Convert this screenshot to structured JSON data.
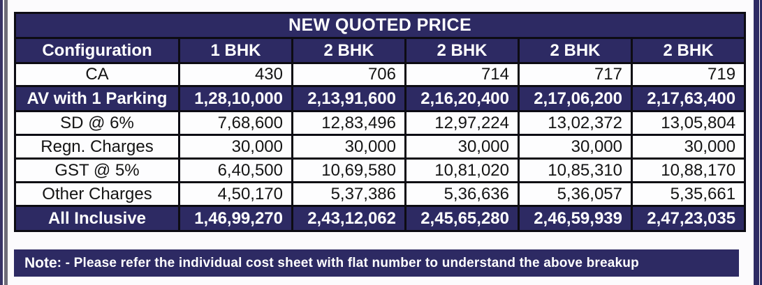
{
  "colors": {
    "navy": "#2d2a63",
    "border": "#0d0c13",
    "pageBg": "#fcfbfd",
    "cellBg": "#fdfdfe",
    "textDark": "#141414",
    "textLight": "#ffffff",
    "grayStripe": "#6e6c77",
    "leftNavy": "#393465"
  },
  "table": {
    "title": "NEW QUOTED PRICE",
    "columns": [
      "Configuration",
      "1 BHK",
      "2 BHK",
      "2 BHK",
      "2 BHK",
      "2 BHK"
    ],
    "rows": [
      {
        "label": "CA",
        "highlight": false,
        "values": [
          "430",
          "706",
          "714",
          "717",
          "719"
        ]
      },
      {
        "label": "AV with 1 Parking",
        "highlight": true,
        "values": [
          "1,28,10,000",
          "2,13,91,600",
          "2,16,20,400",
          "2,17,06,200",
          "2,17,63,400"
        ]
      },
      {
        "label": "SD @ 6%",
        "highlight": false,
        "values": [
          "7,68,600",
          "12,83,496",
          "12,97,224",
          "13,02,372",
          "13,05,804"
        ]
      },
      {
        "label": "Regn. Charges",
        "highlight": false,
        "values": [
          "30,000",
          "30,000",
          "30,000",
          "30,000",
          "30,000"
        ]
      },
      {
        "label": "GST @ 5%",
        "highlight": false,
        "values": [
          "6,40,500",
          "10,69,580",
          "10,81,020",
          "10,85,310",
          "10,88,170"
        ]
      },
      {
        "label": "Other Charges",
        "highlight": false,
        "values": [
          "4,50,170",
          "5,37,386",
          "5,36,636",
          "5,36,057",
          "5,35,661"
        ]
      },
      {
        "label": "All Inclusive",
        "highlight": true,
        "values": [
          "1,46,99,270",
          "2,43,12,062",
          "2,45,65,280",
          "2,46,59,939",
          "2,47,23,035"
        ]
      }
    ]
  },
  "note": {
    "label": "Note",
    "text": ": - Please refer the individual cost sheet with flat number to understand the above breakup"
  }
}
